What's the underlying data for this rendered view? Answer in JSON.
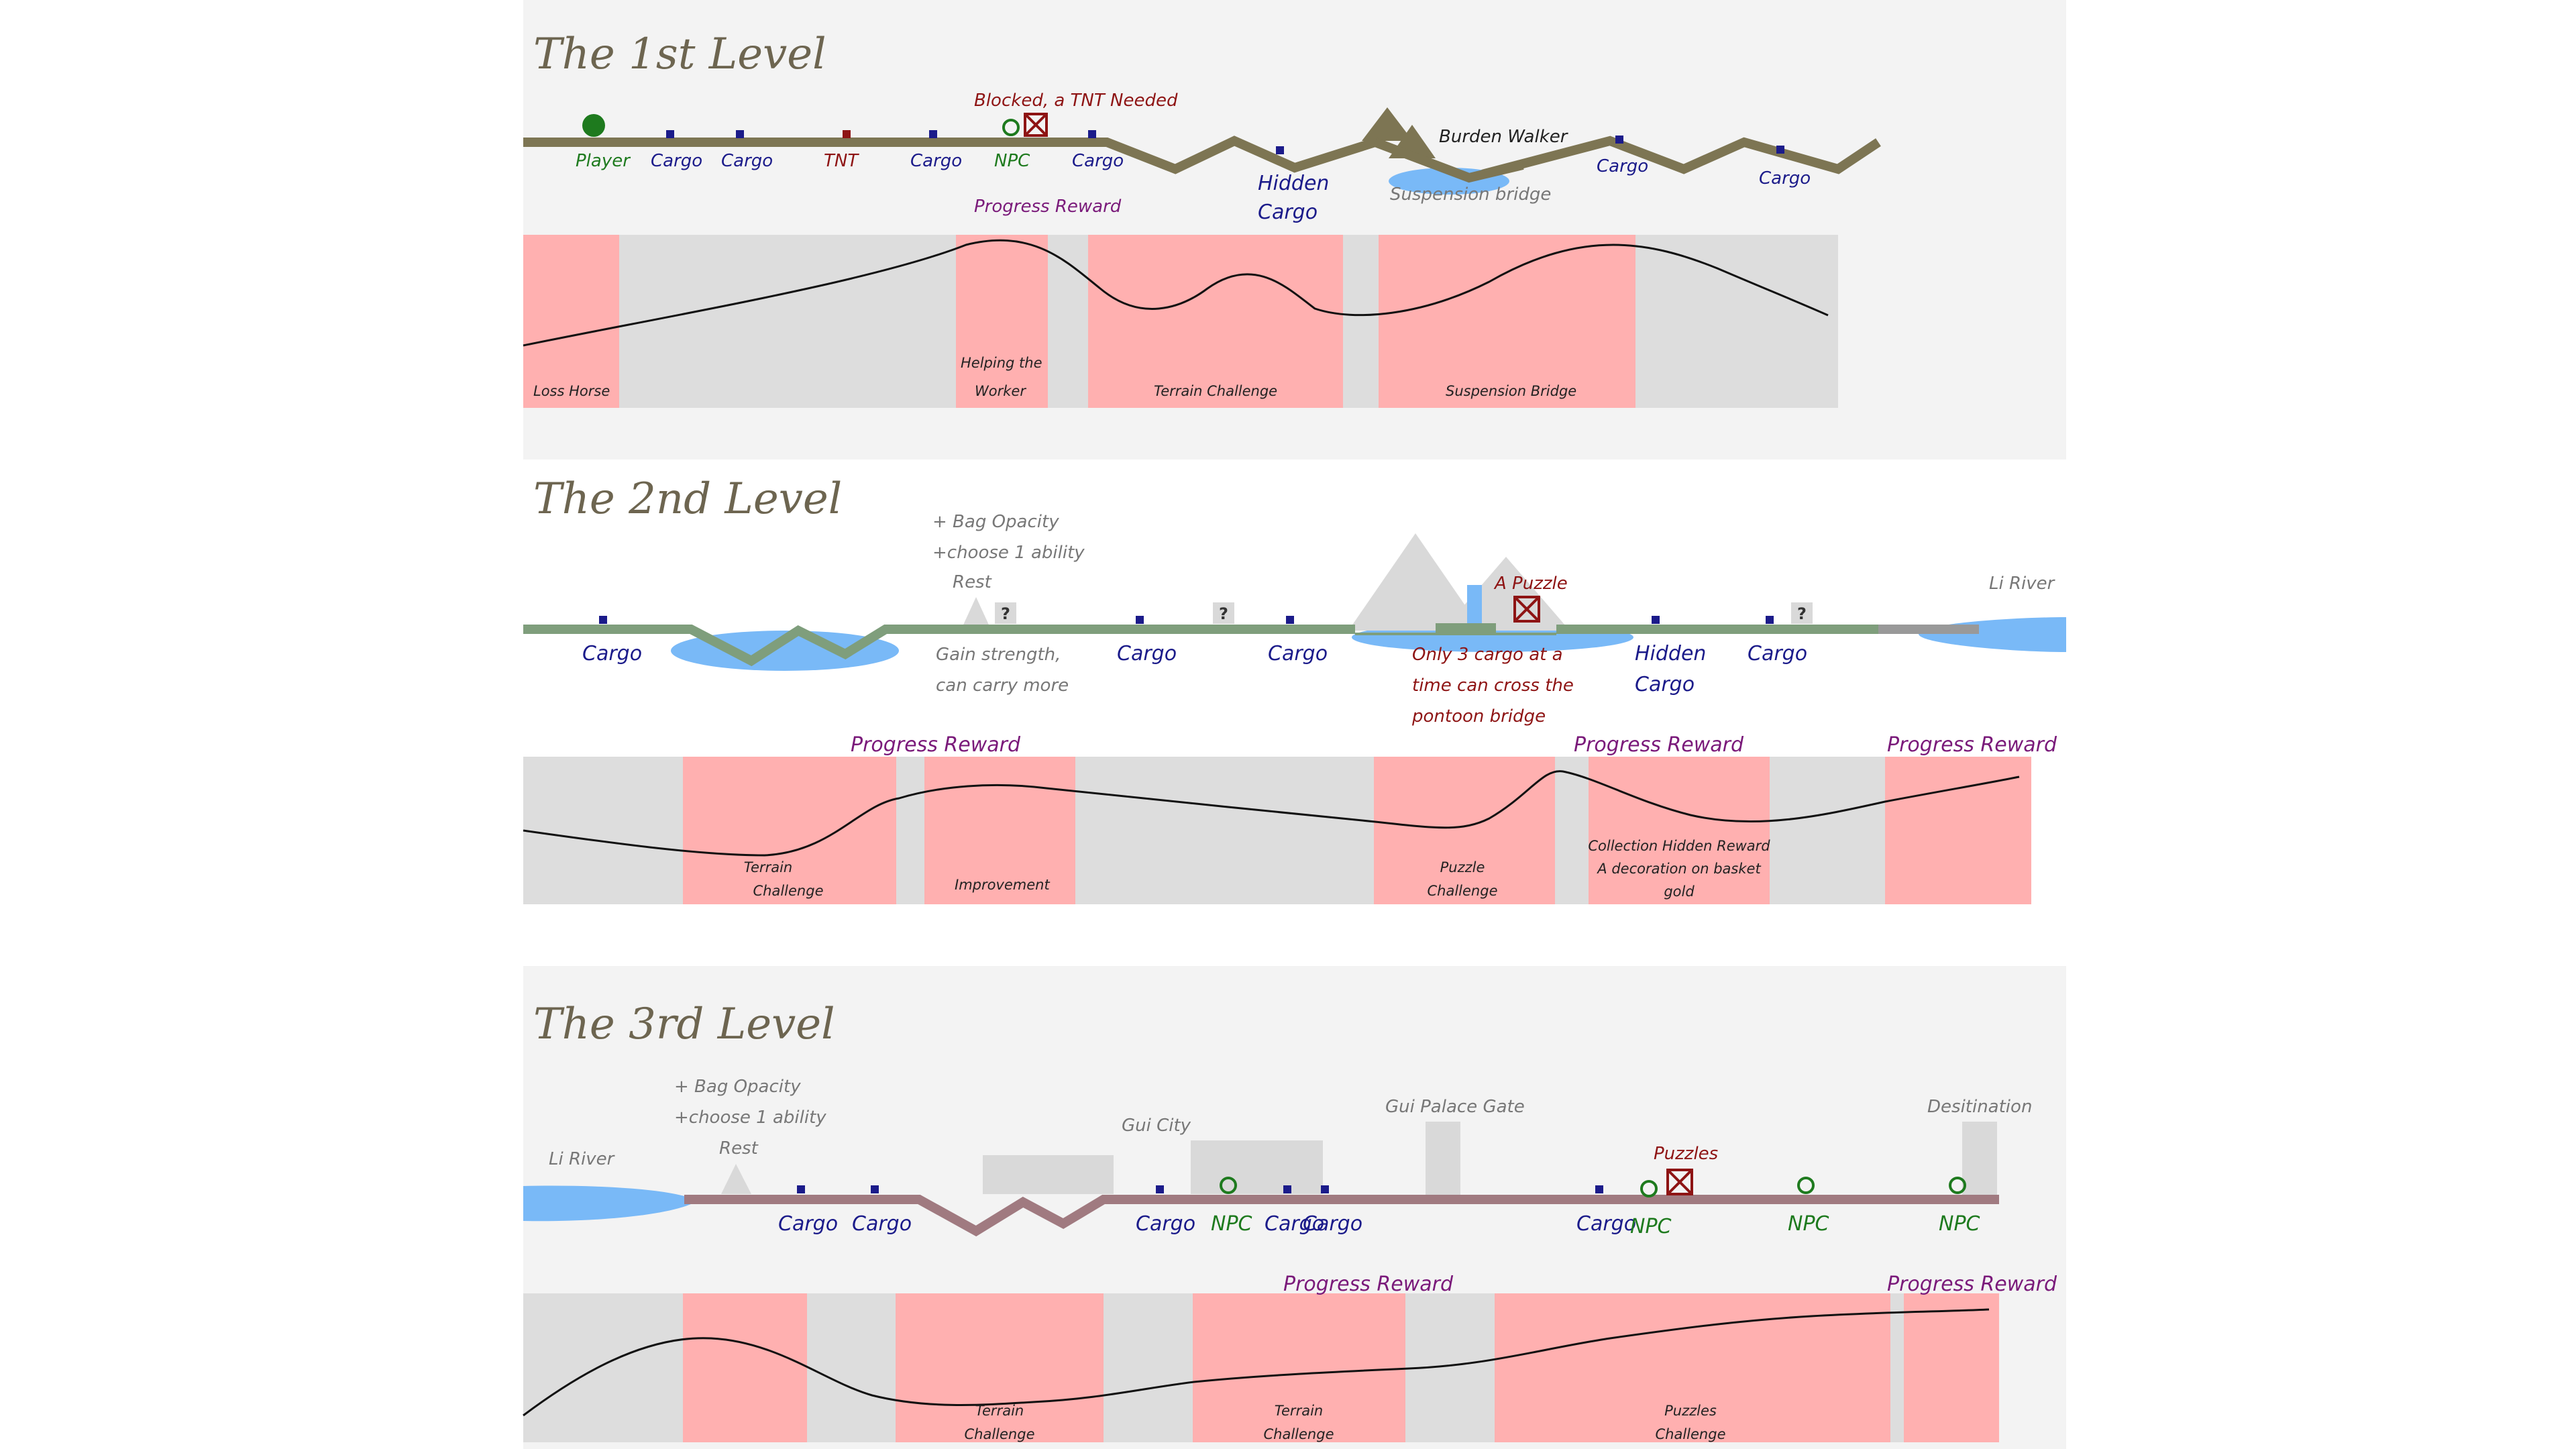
{
  "colors": {
    "panel_bg": "#f3f3f3",
    "road_level1": "#7d7553",
    "road_level2": "#7f9e7c",
    "road_level3": "#a07a80",
    "water": "#79b9f7",
    "mountain": "#d9d9d9",
    "reward_band": "#ffb0b0",
    "neutral_band": "#dddddd",
    "cargo": "#1b1b8a",
    "player": "#1e7a1e",
    "blocker": "#8e1414"
  },
  "level1": {
    "title": "The 1st Level",
    "labels": {
      "player": "Player",
      "cargo": "Cargo",
      "tnt": "TNT",
      "npc": "NPC",
      "blocked": "Blocked, a TNT Needed",
      "progress_reward": "Progress Reward",
      "hidden": "Hidden",
      "hidden_cargo": "Cargo",
      "burden_walker": "Burden Walker",
      "suspension_bridge": "Suspension bridge"
    },
    "bands": {
      "loss_horse": "Loss Horse",
      "helping_line1": "Helping the",
      "helping_line2": "Worker",
      "terrain": "Terrain Challenge",
      "suspension": "Suspension Bridge"
    }
  },
  "level2": {
    "title": "The 2nd Level",
    "labels": {
      "bag": "+ Bag Opacity",
      "ability": "+choose 1 ability",
      "rest": "Rest",
      "gain1": "Gain strength,",
      "gain2": "can carry more",
      "cargo": "Cargo",
      "question": "?",
      "a_puzzle": "A Puzzle",
      "pontoon1": "Only 3 cargo at a",
      "pontoon2": "time can cross the",
      "pontoon3": "pontoon bridge",
      "hidden": "Hidden",
      "hidden_cargo": "Cargo",
      "li_river": "Li River",
      "progress_reward": "Progress Reward"
    },
    "bands": {
      "terrain1": "Terrain",
      "terrain2": "Challenge",
      "improvement": "Improvement",
      "puzzle1": "Puzzle",
      "puzzle2": "Challenge",
      "collection1": "Collection Hidden Reward",
      "collection2": "A decoration on basket",
      "collection3": "gold"
    }
  },
  "level3": {
    "title": "The 3rd Level",
    "labels": {
      "li_river": "Li River",
      "bag": "+ Bag Opacity",
      "ability": "+choose 1 ability",
      "rest": "Rest",
      "cargo": "Cargo",
      "npc": "NPC",
      "gui_city": "Gui City",
      "gui_palace_gate": "Gui Palace Gate",
      "puzzles": "Puzzles",
      "destination": "Desitination",
      "progress_reward": "Progress Reward"
    },
    "bands": {
      "terrain1": "Terrain",
      "terrain2": "Challenge",
      "puzzles1": "Puzzles",
      "puzzles2": "Challenge"
    }
  }
}
